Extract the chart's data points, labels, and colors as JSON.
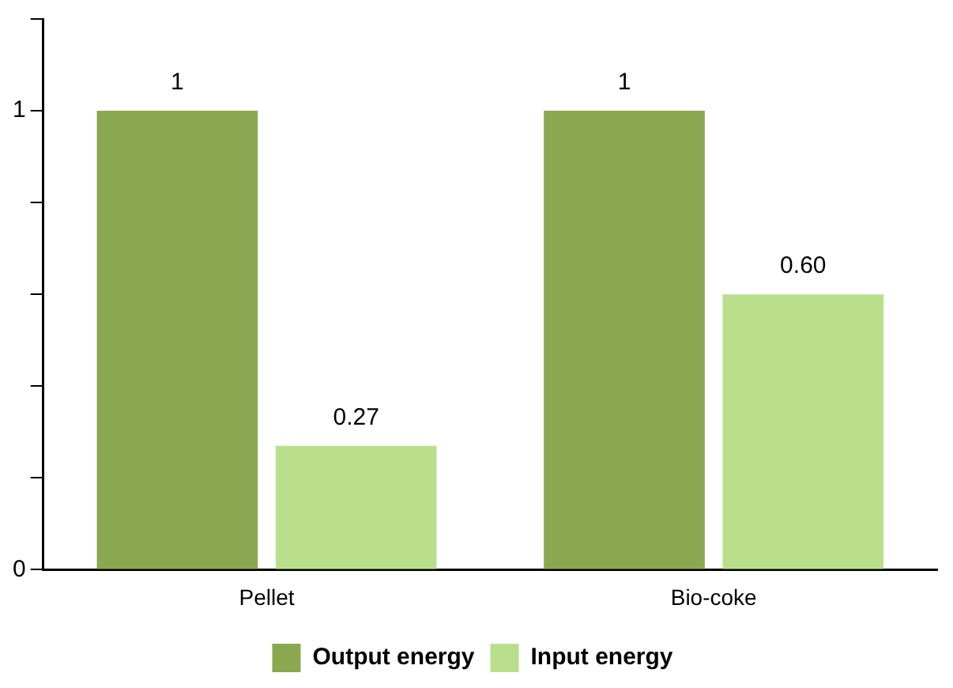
{
  "chart_data": {
    "type": "bar",
    "categories": [
      "Pellet",
      "Bio-coke"
    ],
    "series": [
      {
        "name": "Output energy",
        "color": "#8aa84f",
        "values": [
          1,
          1
        ],
        "value_labels": [
          "1",
          "1"
        ]
      },
      {
        "name": "Input energy",
        "color": "#b9df8c",
        "values": [
          0.27,
          0.6
        ],
        "value_labels": [
          "0.27",
          "0.60"
        ]
      }
    ],
    "ylim": [
      0,
      1.2
    ],
    "yticks": [
      0,
      {
        "value": 0.2,
        "label": null
      },
      {
        "value": 0.4,
        "label": null
      },
      {
        "value": 0.6,
        "label": null
      },
      {
        "value": 0.8,
        "label": null
      },
      1,
      {
        "value": 1.2,
        "label": null
      }
    ],
    "grid": false,
    "legend": "bottom"
  }
}
